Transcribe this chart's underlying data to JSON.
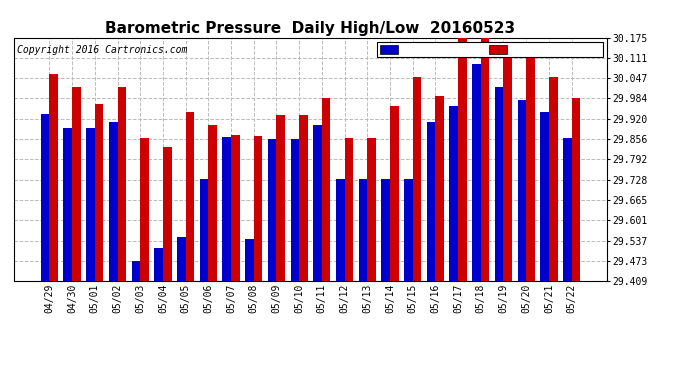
{
  "title": "Barometric Pressure  Daily High/Low  20160523",
  "copyright": "Copyright 2016 Cartronics.com",
  "low_color": "#0000cc",
  "high_color": "#cc0000",
  "bg_color": "#ffffff",
  "plot_bg": "#ffffff",
  "ylim_min": 29.409,
  "ylim_max": 30.175,
  "yticks": [
    29.409,
    29.473,
    29.537,
    29.601,
    29.665,
    29.728,
    29.792,
    29.856,
    29.92,
    29.984,
    30.047,
    30.111,
    30.175
  ],
  "dates": [
    "04/29",
    "04/30",
    "05/01",
    "05/02",
    "05/03",
    "05/04",
    "05/05",
    "05/06",
    "05/07",
    "05/08",
    "05/09",
    "05/10",
    "05/11",
    "05/12",
    "05/13",
    "05/14",
    "05/15",
    "05/16",
    "05/17",
    "05/18",
    "05/19",
    "05/20",
    "05/21",
    "05/22"
  ],
  "low_values": [
    29.935,
    29.892,
    29.892,
    29.91,
    29.473,
    29.515,
    29.547,
    29.73,
    29.862,
    29.543,
    29.857,
    29.857,
    29.9,
    29.73,
    29.73,
    29.73,
    29.73,
    29.91,
    29.96,
    30.092,
    30.02,
    29.98,
    29.94,
    29.858
  ],
  "high_values": [
    30.06,
    30.02,
    29.965,
    30.02,
    29.86,
    29.83,
    29.94,
    29.9,
    29.87,
    29.867,
    29.93,
    29.93,
    29.984,
    29.86,
    29.86,
    29.96,
    30.05,
    29.99,
    30.175,
    30.175,
    30.12,
    30.115,
    30.05,
    29.984
  ],
  "title_fontsize": 11,
  "copyright_fontsize": 7,
  "tick_fontsize": 7,
  "bar_width": 0.38
}
